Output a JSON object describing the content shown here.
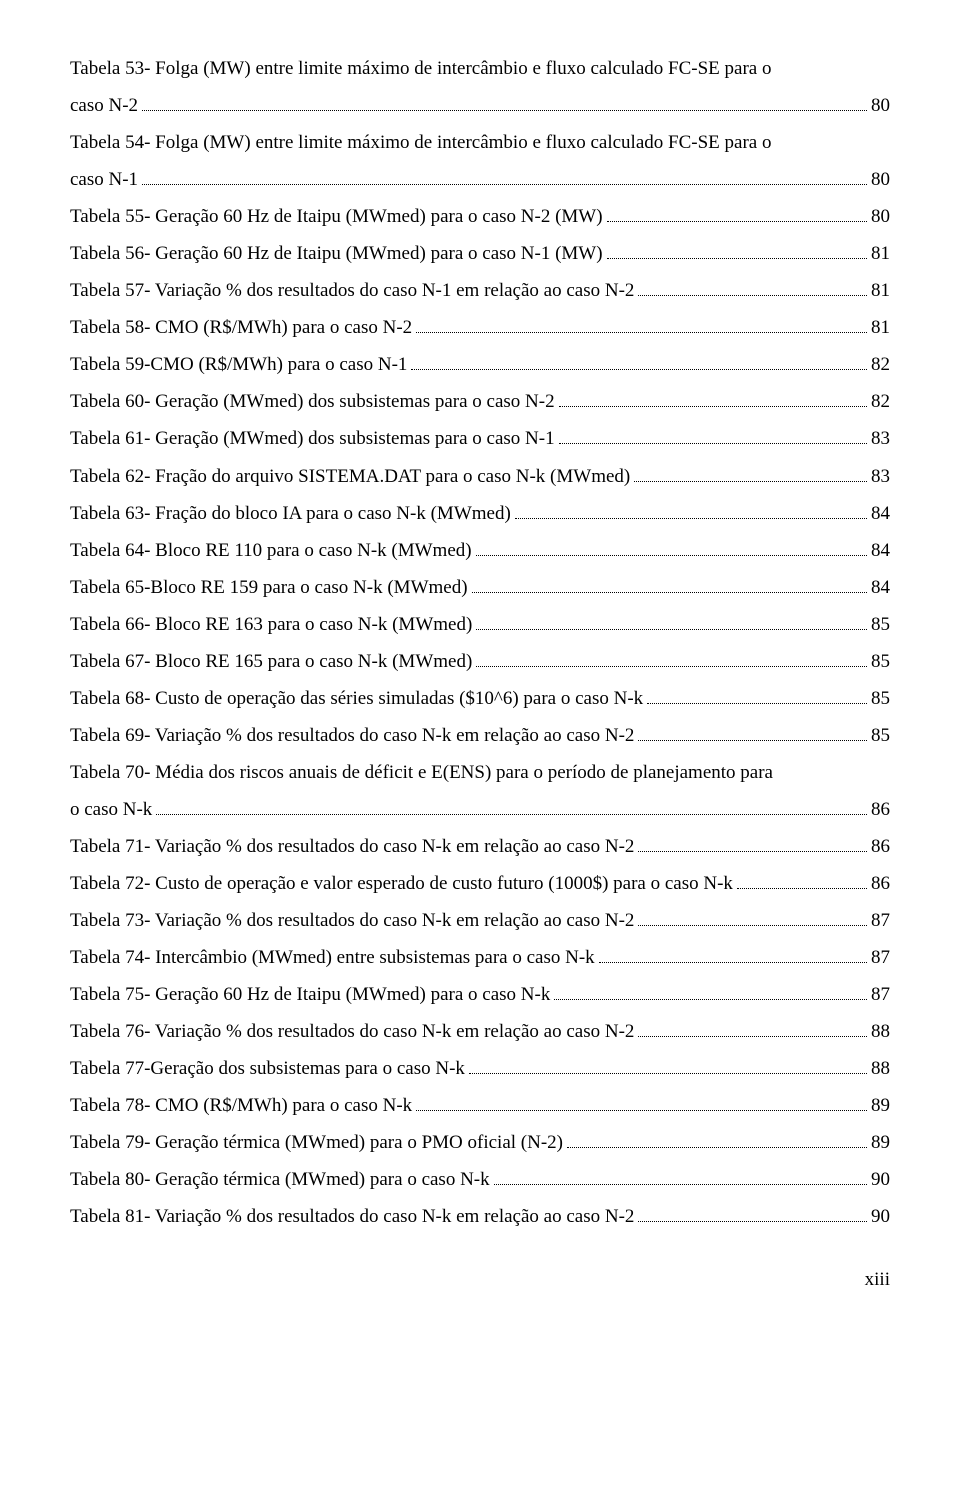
{
  "entries": [
    {
      "text_lines": [
        "Tabela 53- Folga (MW) entre limite máximo de intercâmbio e fluxo calculado FC-SE para o",
        "caso N-2"
      ],
      "page": "80"
    },
    {
      "text_lines": [
        "Tabela 54- Folga (MW) entre limite máximo de intercâmbio e fluxo calculado FC-SE para o",
        "caso N-1"
      ],
      "page": "80"
    },
    {
      "text_lines": [
        "Tabela 55- Geração 60 Hz de Itaipu (MWmed) para o caso N-2 (MW)"
      ],
      "page": "80"
    },
    {
      "text_lines": [
        "Tabela 56- Geração 60 Hz de Itaipu (MWmed) para o caso N-1 (MW)"
      ],
      "page": "81"
    },
    {
      "text_lines": [
        "Tabela 57- Variação % dos resultados do caso N-1 em relação ao caso N-2"
      ],
      "page": "81"
    },
    {
      "text_lines": [
        "Tabela 58- CMO (R$/MWh) para o caso N-2"
      ],
      "page": "81"
    },
    {
      "text_lines": [
        "Tabela 59-CMO (R$/MWh) para o caso N-1"
      ],
      "page": "82"
    },
    {
      "text_lines": [
        "Tabela 60- Geração (MWmed) dos subsistemas para o caso N-2"
      ],
      "page": "82"
    },
    {
      "text_lines": [
        "Tabela 61- Geração (MWmed) dos subsistemas para o caso N-1"
      ],
      "page": "83"
    },
    {
      "text_lines": [
        "Tabela 62- Fração do arquivo SISTEMA.DAT para o caso N-k (MWmed)"
      ],
      "page": "83"
    },
    {
      "text_lines": [
        "Tabela 63- Fração do bloco IA para o caso N-k (MWmed)"
      ],
      "page": "84"
    },
    {
      "text_lines": [
        "Tabela 64- Bloco RE 110 para o caso N-k (MWmed)"
      ],
      "page": "84"
    },
    {
      "text_lines": [
        "Tabela 65-Bloco RE 159 para o caso N-k (MWmed)"
      ],
      "page": "84"
    },
    {
      "text_lines": [
        "Tabela 66- Bloco RE 163 para o caso N-k (MWmed)"
      ],
      "page": "85"
    },
    {
      "text_lines": [
        "Tabela 67- Bloco RE 165 para o caso N-k (MWmed)"
      ],
      "page": "85"
    },
    {
      "text_lines": [
        "Tabela 68- Custo de operação das séries simuladas ($10^6) para o caso N-k"
      ],
      "page": "85"
    },
    {
      "text_lines": [
        "Tabela 69- Variação % dos resultados do caso N-k em relação ao caso N-2"
      ],
      "page": "85"
    },
    {
      "text_lines": [
        "Tabela 70- Média dos riscos anuais de déficit e E(ENS) para o período de planejamento para",
        "o caso N-k"
      ],
      "page": "86"
    },
    {
      "text_lines": [
        "Tabela 71- Variação % dos resultados do caso N-k em relação ao caso N-2"
      ],
      "page": "86"
    },
    {
      "text_lines": [
        "Tabela 72- Custo de operação e valor esperado de custo futuro (1000$) para o caso N-k"
      ],
      "page": "86"
    },
    {
      "text_lines": [
        "Tabela 73- Variação % dos resultados do caso N-k em relação ao caso N-2"
      ],
      "page": "87"
    },
    {
      "text_lines": [
        "Tabela 74- Intercâmbio (MWmed) entre subsistemas para o caso N-k"
      ],
      "page": "87"
    },
    {
      "text_lines": [
        "Tabela 75- Geração 60 Hz de Itaipu (MWmed) para o caso N-k"
      ],
      "page": "87"
    },
    {
      "text_lines": [
        "Tabela 76- Variação % dos resultados do caso N-k em relação ao caso N-2"
      ],
      "page": "88"
    },
    {
      "text_lines": [
        "Tabela 77-Geração dos subsistemas para o caso N-k"
      ],
      "page": "88"
    },
    {
      "text_lines": [
        "Tabela 78- CMO (R$/MWh) para o caso N-k"
      ],
      "page": "89"
    },
    {
      "text_lines": [
        "Tabela 79- Geração térmica (MWmed) para o PMO oficial (N-2)"
      ],
      "page": "89"
    },
    {
      "text_lines": [
        "Tabela 80- Geração térmica (MWmed) para o caso N-k"
      ],
      "page": "90"
    },
    {
      "text_lines": [
        "Tabela 81- Variação % dos resultados do caso N-k em relação ao caso N-2"
      ],
      "page": "90"
    }
  ],
  "page_number": "xiii"
}
